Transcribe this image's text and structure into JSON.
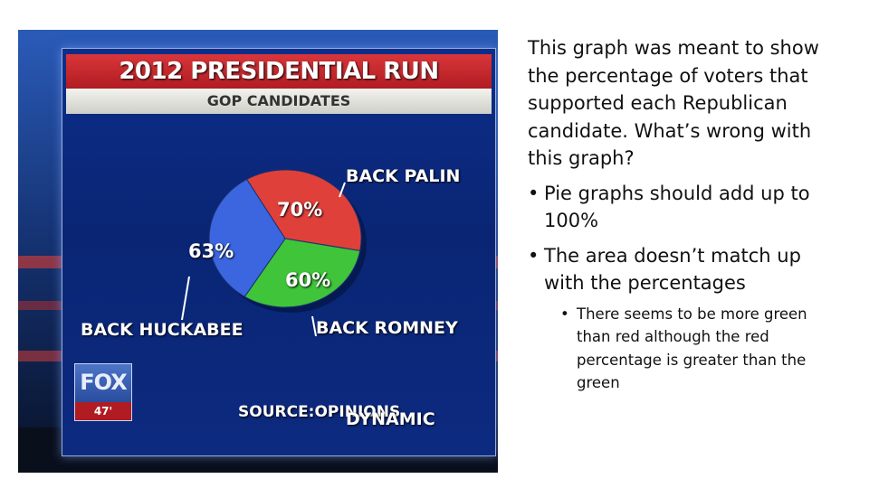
{
  "photo": {
    "title": "2012 PRESIDENTIAL RUN",
    "subtitle": "GOP CANDIDATES",
    "source": "SOURCE:OPINIONS",
    "logo": {
      "name": "FOX",
      "channel": "47'"
    },
    "watermark": "DYNAMIC"
  },
  "chart_data": {
    "type": "pie",
    "title": "2012 PRESIDENTIAL RUN",
    "subtitle": "GOP CANDIDATES",
    "slices": [
      {
        "label": "BACK PALIN",
        "value": 70,
        "value_label": "70%",
        "color": "#e0403a"
      },
      {
        "label": "BACK ROMNEY",
        "value": 60,
        "value_label": "60%",
        "color": "#3fc43a"
      },
      {
        "label": "BACK HUCKABEE",
        "value": 63,
        "value_label": "63%",
        "color": "#3b66e0"
      }
    ],
    "note": "SOURCE:OPINIONS"
  },
  "notes": {
    "question": "This graph was meant to show the percentage of voters that supported each Republican candidate. What’s wrong with this graph?",
    "bullets": [
      "Pie graphs should add up to 100%",
      "The area doesn’t match up with the percentages"
    ],
    "subbullet": "There seems to be more green than red although the red percentage is greater than the green",
    "bullet_glyph": "•"
  },
  "colors": {
    "board": "#0b2a80",
    "title_bar": "#c62a2f",
    "red": "#e0403a",
    "green": "#3fc43a",
    "blue": "#3b66e0"
  }
}
